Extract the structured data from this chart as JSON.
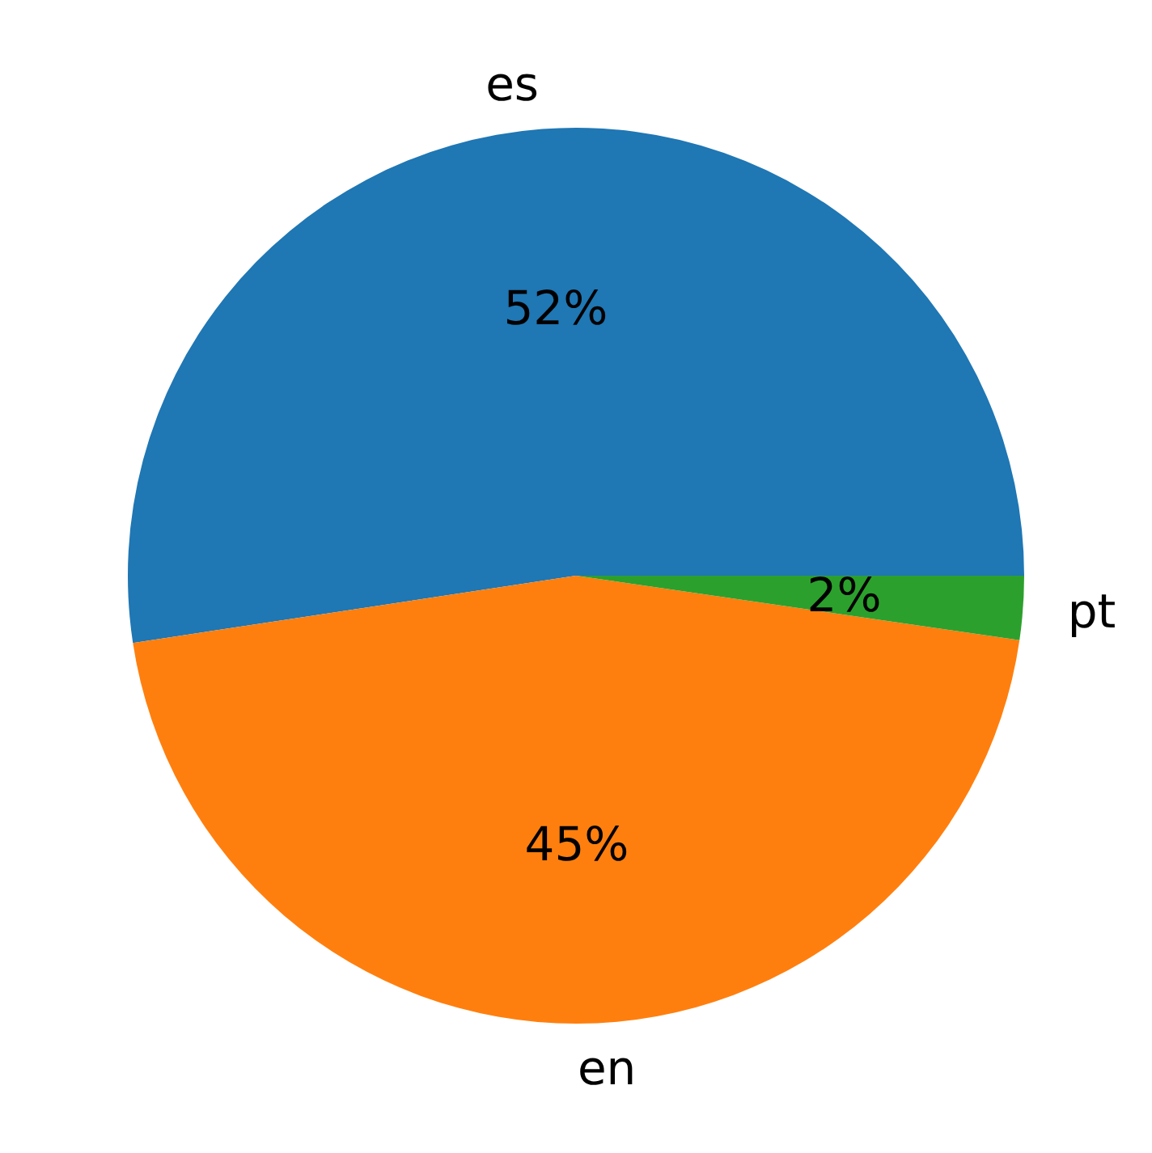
{
  "chart_data": {
    "type": "pie",
    "categories": [
      "es",
      "en",
      "pt"
    ],
    "values": [
      52.4,
      45.3,
      2.3
    ],
    "colors": [
      "#1f77b4",
      "#ff7f0e",
      "#2ca02c"
    ],
    "value_labels": [
      "52%",
      "45%",
      "2%"
    ]
  }
}
